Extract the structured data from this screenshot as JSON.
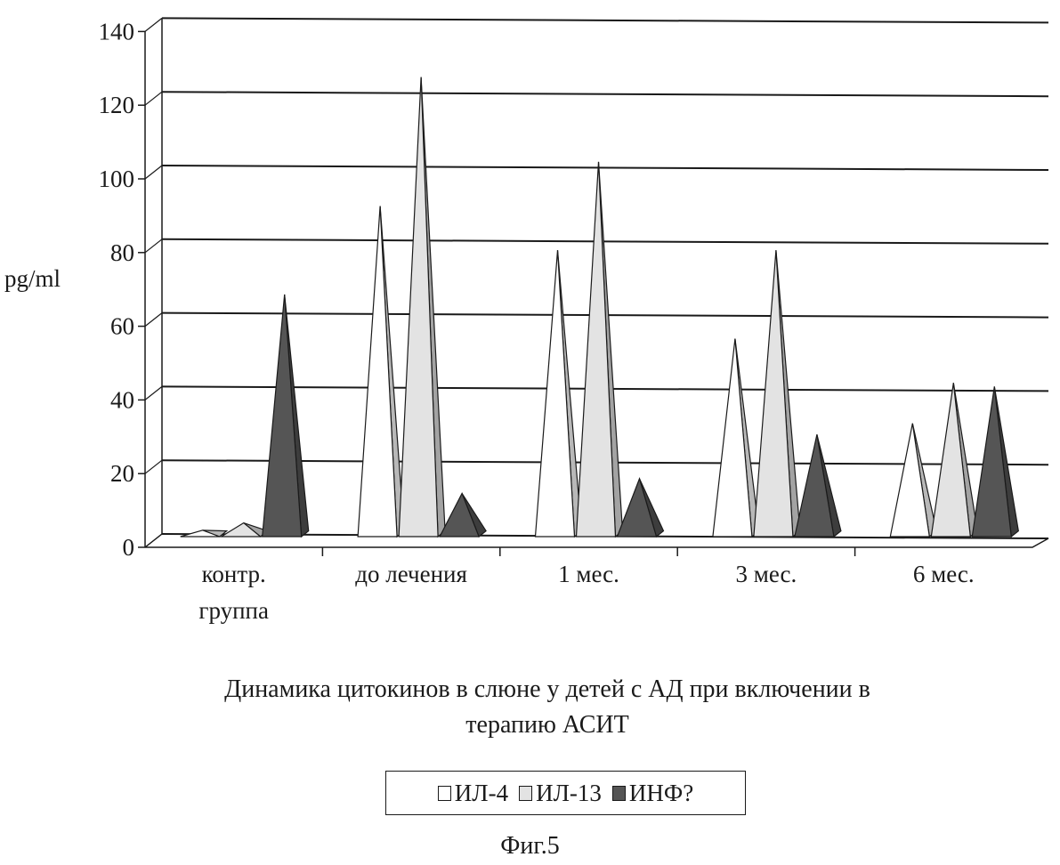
{
  "chart_data": {
    "type": "bar",
    "style": "3d-pyramid",
    "title": "Динамика цитокинов в слюне у детей с АД при включении в терапию АСИТ",
    "ylabel": "pg/ml",
    "xlabel": "",
    "ylim": [
      0,
      140
    ],
    "yticks": [
      "0",
      "20",
      "40",
      "60",
      "80",
      "100",
      "120",
      "140"
    ],
    "grid": true,
    "legend_position": "bottom",
    "categories": [
      [
        "контр.",
        "группа"
      ],
      [
        "до лечения"
      ],
      [
        "1 мес."
      ],
      [
        "3 мес."
      ],
      [
        "6 мес."
      ]
    ],
    "series": [
      {
        "name": "ИЛ-4",
        "values": [
          1,
          89,
          77,
          53,
          30
        ],
        "color": "#ffffff"
      },
      {
        "name": "ИЛ-13",
        "values": [
          3,
          124,
          101,
          77,
          41
        ],
        "color": "#e3e3e3"
      },
      {
        "name": "ИНФ?",
        "values": [
          65,
          11,
          15,
          27,
          40
        ],
        "color": "#555555"
      }
    ]
  },
  "figure_caption": "Фиг.5"
}
